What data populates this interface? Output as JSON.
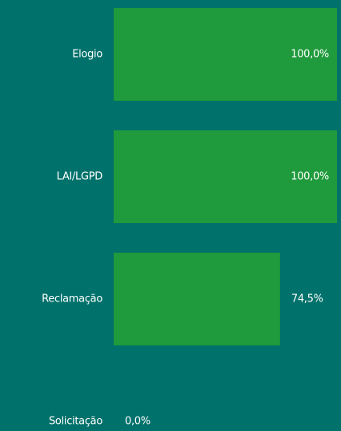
{
  "chart_data": {
    "type": "hbar",
    "categories": [
      "Elogio",
      "LAI/LGPD",
      "Reclamação",
      "Solicitação"
    ],
    "values": [
      100,
      100,
      74.5,
      0
    ],
    "value_labels": [
      "100,0%",
      "100,0%",
      "74,5%",
      "0,0%"
    ],
    "color": "#1f9a3c",
    "xlim": [
      0,
      100
    ]
  }
}
